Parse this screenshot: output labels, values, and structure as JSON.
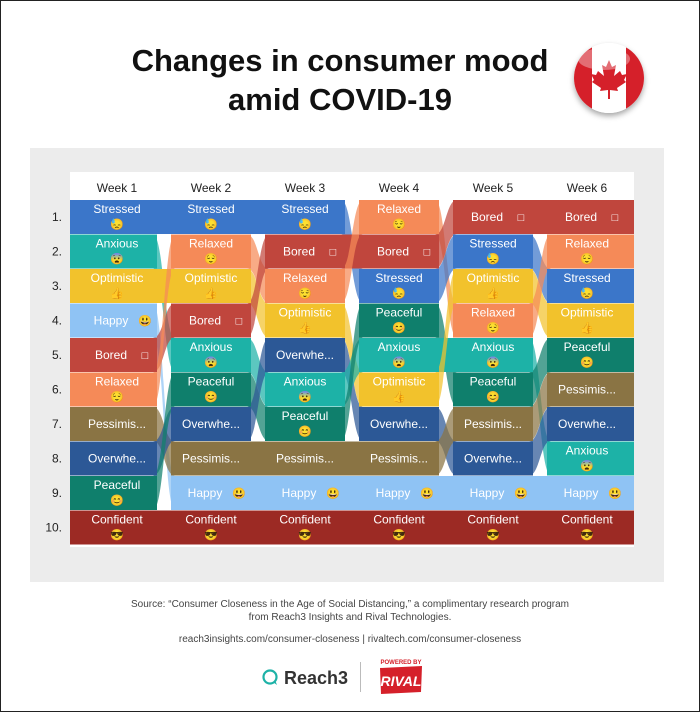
{
  "title_line1": "Changes in consumer mood",
  "title_line2": "amid COVID-19",
  "flag": "canada-flag",
  "colors": {
    "Stressed": "#3b76c9",
    "Anxious": "#1db2a7",
    "Optimistic": "#f2c22c",
    "Happy": "#8fc3f4",
    "Bored": "#c0463d",
    "Relaxed": "#f58a58",
    "Pessimis...": "#8a7444",
    "Overwhe...": "#2c5896",
    "Peaceful": "#0f7f6c",
    "Confident": "#9c2a24"
  },
  "chart_data": {
    "type": "table",
    "weeks": [
      "Week 1",
      "Week 2",
      "Week 3",
      "Week 4",
      "Week 5",
      "Week 6"
    ],
    "ranks": [
      "1.",
      "2.",
      "3.",
      "4.",
      "5.",
      "6.",
      "7.",
      "8.",
      "9.",
      "10."
    ],
    "columns": [
      [
        {
          "label": "Stressed",
          "emoji": "😓"
        },
        {
          "label": "Anxious",
          "emoji": "😨"
        },
        {
          "label": "Optimistic",
          "emoji": "👍"
        },
        {
          "label": "Happy",
          "emoji": "😃"
        },
        {
          "label": "Bored",
          "emoji": "□"
        },
        {
          "label": "Relaxed",
          "emoji": "😌"
        },
        {
          "label": "Pessimis...",
          "emoji": ""
        },
        {
          "label": "Overwhe...",
          "emoji": ""
        },
        {
          "label": "Peaceful",
          "emoji": "😊"
        },
        {
          "label": "Confident",
          "emoji": "😎"
        }
      ],
      [
        {
          "label": "Stressed",
          "emoji": "😓"
        },
        {
          "label": "Relaxed",
          "emoji": "😌"
        },
        {
          "label": "Optimistic",
          "emoji": "👍"
        },
        {
          "label": "Bored",
          "emoji": "□"
        },
        {
          "label": "Anxious",
          "emoji": "😨"
        },
        {
          "label": "Peaceful",
          "emoji": "😊"
        },
        {
          "label": "Overwhe...",
          "emoji": ""
        },
        {
          "label": "Pessimis...",
          "emoji": ""
        },
        {
          "label": "Happy",
          "emoji": "😃"
        },
        {
          "label": "Confident",
          "emoji": "😎"
        }
      ],
      [
        {
          "label": "Stressed",
          "emoji": "😓"
        },
        {
          "label": "Bored",
          "emoji": "□"
        },
        {
          "label": "Relaxed",
          "emoji": "😌"
        },
        {
          "label": "Optimistic",
          "emoji": "👍"
        },
        {
          "label": "Overwhe...",
          "emoji": ""
        },
        {
          "label": "Anxious",
          "emoji": "😨"
        },
        {
          "label": "Peaceful",
          "emoji": "😊"
        },
        {
          "label": "Pessimis...",
          "emoji": ""
        },
        {
          "label": "Happy",
          "emoji": "😃"
        },
        {
          "label": "Confident",
          "emoji": "😎"
        }
      ],
      [
        {
          "label": "Relaxed",
          "emoji": "😌"
        },
        {
          "label": "Bored",
          "emoji": "□"
        },
        {
          "label": "Stressed",
          "emoji": "😓"
        },
        {
          "label": "Peaceful",
          "emoji": "😊"
        },
        {
          "label": "Anxious",
          "emoji": "😨"
        },
        {
          "label": "Optimistic",
          "emoji": "👍"
        },
        {
          "label": "Overwhe...",
          "emoji": ""
        },
        {
          "label": "Pessimis...",
          "emoji": ""
        },
        {
          "label": "Happy",
          "emoji": "😃"
        },
        {
          "label": "Confident",
          "emoji": "😎"
        }
      ],
      [
        {
          "label": "Bored",
          "emoji": "□"
        },
        {
          "label": "Stressed",
          "emoji": "😓"
        },
        {
          "label": "Optimistic",
          "emoji": "👍"
        },
        {
          "label": "Relaxed",
          "emoji": "😌"
        },
        {
          "label": "Anxious",
          "emoji": "😨"
        },
        {
          "label": "Peaceful",
          "emoji": "😊"
        },
        {
          "label": "Pessimis...",
          "emoji": ""
        },
        {
          "label": "Overwhe...",
          "emoji": ""
        },
        {
          "label": "Happy",
          "emoji": "😃"
        },
        {
          "label": "Confident",
          "emoji": "😎"
        }
      ],
      [
        {
          "label": "Bored",
          "emoji": "□"
        },
        {
          "label": "Relaxed",
          "emoji": "😌"
        },
        {
          "label": "Stressed",
          "emoji": "😓"
        },
        {
          "label": "Optimistic",
          "emoji": "👍"
        },
        {
          "label": "Peaceful",
          "emoji": "😊"
        },
        {
          "label": "Pessimis...",
          "emoji": ""
        },
        {
          "label": "Overwhe...",
          "emoji": ""
        },
        {
          "label": "Anxious",
          "emoji": "😨"
        },
        {
          "label": "Happy",
          "emoji": "😃"
        },
        {
          "label": "Confident",
          "emoji": "😎"
        }
      ]
    ]
  },
  "source_line1": "Source: “Consumer Closeness in the Age of Social Distancing,” a complimentary research program",
  "source_line2": "from Reach3 Insights and Rival Technologies.",
  "links": "reach3insights.com/consumer-closeness | rivaltech.com/consumer-closeness",
  "logos": {
    "reach3": "Reach3",
    "rival_top": "POWERED BY",
    "rival_word": "RIVAL"
  }
}
